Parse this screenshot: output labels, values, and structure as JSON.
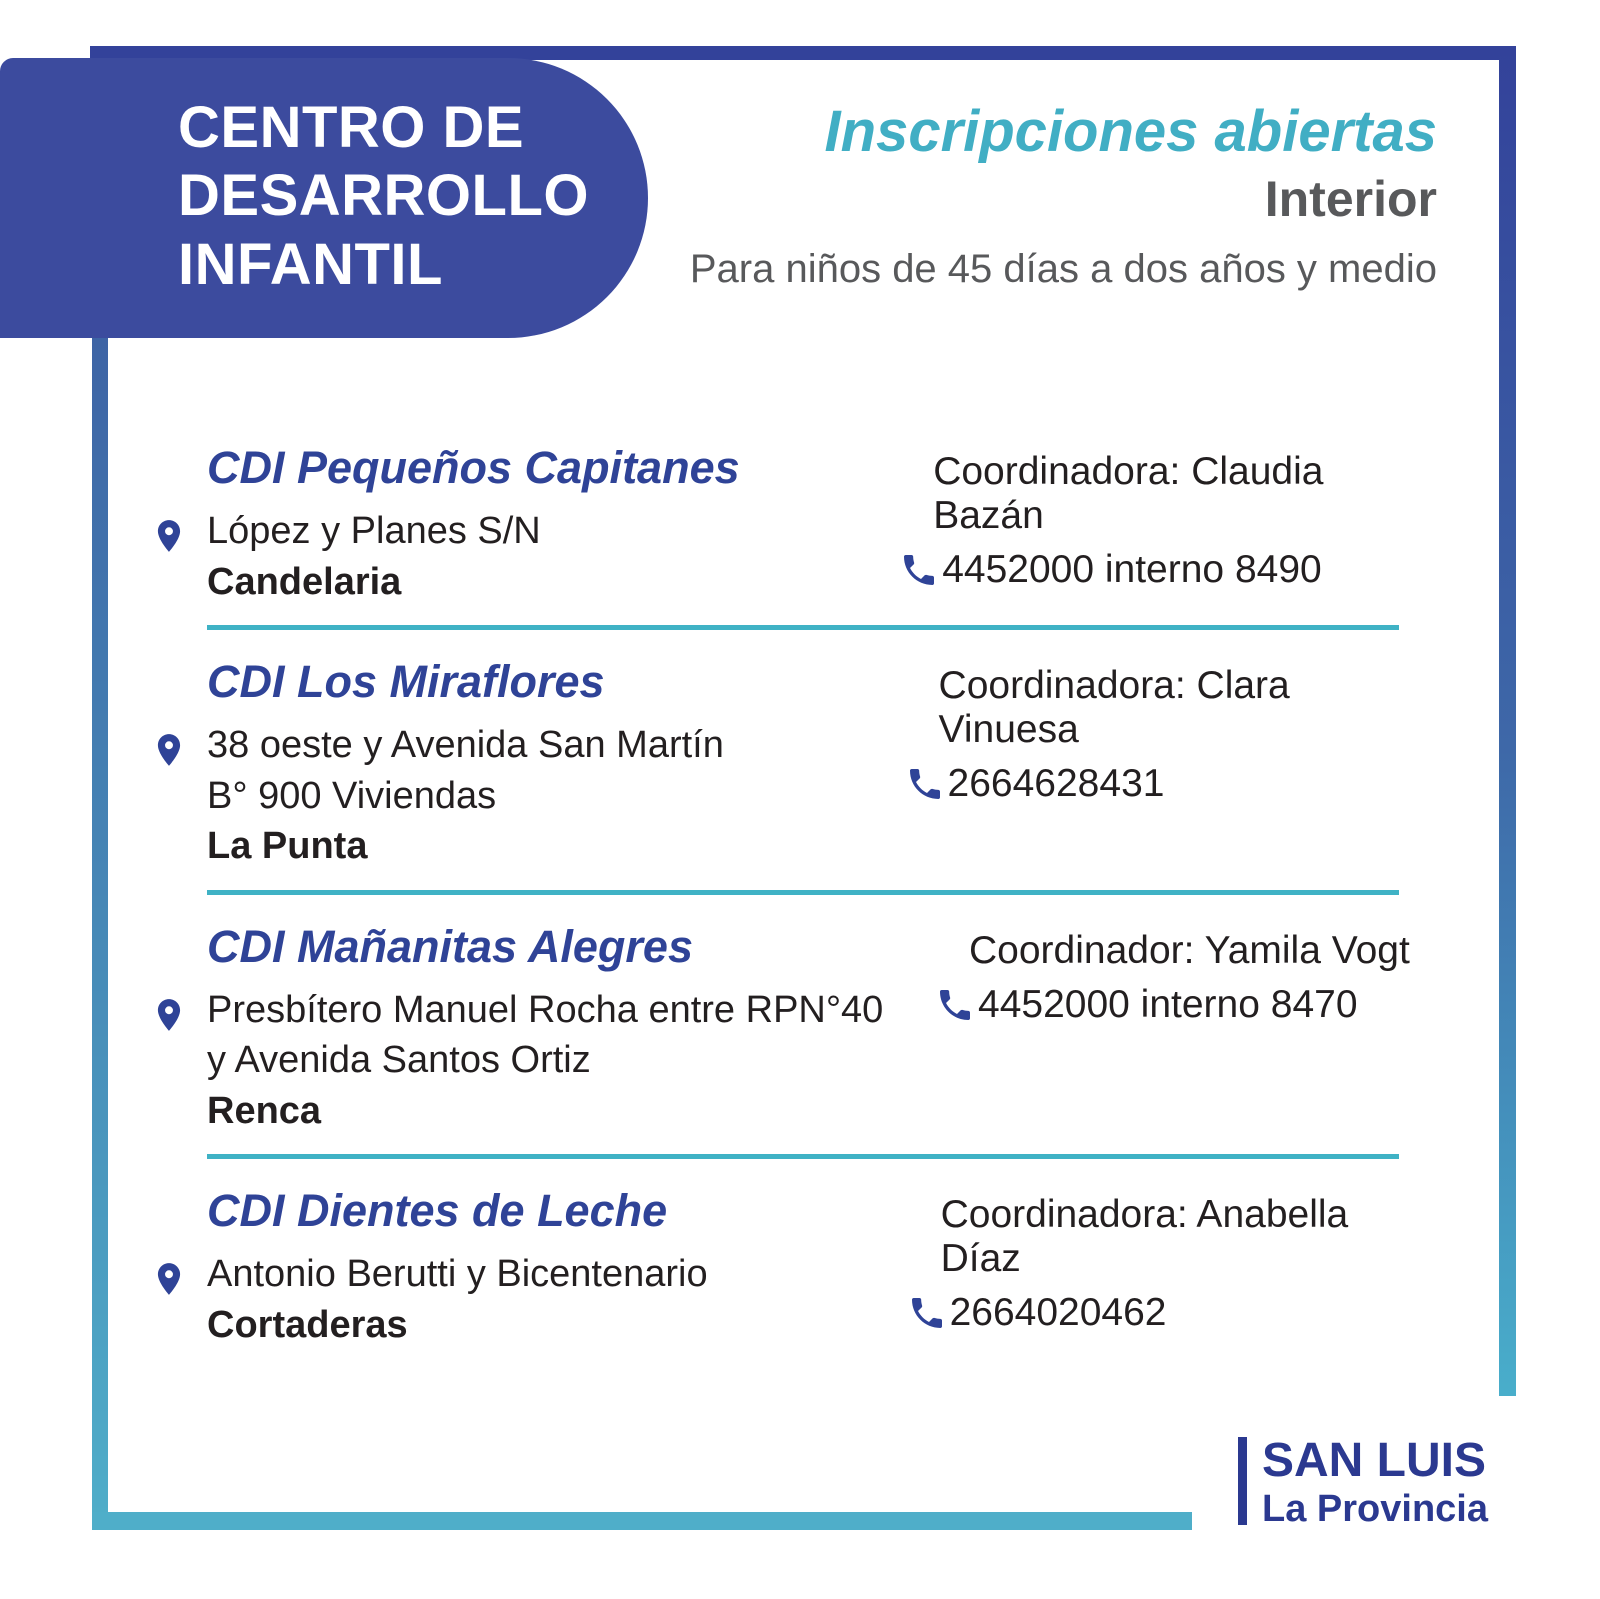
{
  "header": {
    "title": "CENTRO DE\nDESARROLLO\nINFANTIL",
    "subtitle_italic": "Inscripciones abiertas",
    "subtitle_region": "Interior",
    "subtitle_audience": "Para niños de 45 días a dos años y medio"
  },
  "centers": [
    {
      "name": "CDI Pequeños Capitanes",
      "address_lines": [
        "López y Planes S/N"
      ],
      "city": "Candelaria",
      "coordinator": "Coordinadora: Claudia Bazán",
      "phone": "4452000 interno 8490",
      "divider": true
    },
    {
      "name": "CDI Los Miraflores",
      "address_lines": [
        "38 oeste y Avenida San Martín",
        "B° 900 Viviendas"
      ],
      "city": "La Punta",
      "coordinator": "Coordinadora: Clara Vinuesa",
      "phone": "2664628431",
      "divider": true
    },
    {
      "name": "CDI Mañanitas Alegres",
      "address_lines": [
        "Presbítero Manuel Rocha entre RPN°40",
        "y Avenida Santos Ortiz"
      ],
      "city": "Renca",
      "coordinator": "Coordinador: Yamila Vogt",
      "phone": "4452000 interno 8470",
      "divider": true
    },
    {
      "name": "CDI Dientes de Leche",
      "address_lines": [
        "Antonio Berutti y Bicentenario"
      ],
      "city": "Cortaderas",
      "coordinator": "Coordinadora: Anabella Díaz",
      "phone": "2664020462",
      "divider": false
    }
  ],
  "logo": {
    "line1": "SAN LUIS",
    "line2": "La Provincia"
  },
  "icons": {
    "location": "location-pin-icon",
    "phone": "phone-icon"
  },
  "colors": {
    "header_box_blue": "#3C4B9E",
    "frame_blue": "#33429A",
    "frame_teal": "#4FAEC9",
    "accent_teal": "#41AEC4",
    "divider_teal": "#3FB2C5",
    "title_blue": "#2F4397",
    "logo_blue": "#2B3990",
    "text_dark": "#231F20",
    "text_gray": "#58595B"
  }
}
